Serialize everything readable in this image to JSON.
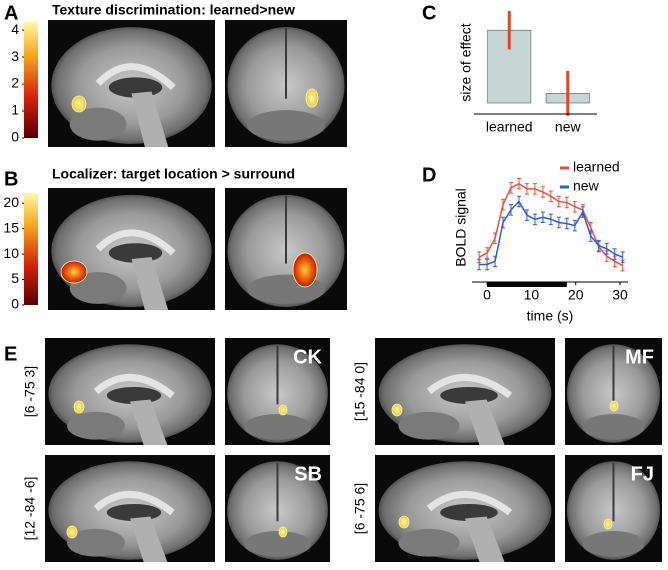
{
  "panels": {
    "A": {
      "letter": "A",
      "title": "Texture discrimination: learned>new"
    },
    "B": {
      "letter": "B",
      "title": "Localizer: target location > surround"
    },
    "C": {
      "letter": "C"
    },
    "D": {
      "letter": "D"
    },
    "E": {
      "letter": "E",
      "subjects": [
        {
          "name": "CK",
          "coords": "[6 -75 3]"
        },
        {
          "name": "SB",
          "coords": "[12 -84 -6]"
        },
        {
          "name": "MF",
          "coords": "[15 -84 0]"
        },
        {
          "name": "FJ",
          "coords": "[6 -75 6]"
        }
      ]
    }
  },
  "chart_data": [
    {
      "type": "colorbar",
      "ylim": [
        0,
        4.3
      ],
      "yticks": [
        0,
        1,
        2,
        3,
        4
      ]
    },
    {
      "type": "colorbar",
      "ylim": [
        0,
        22
      ],
      "yticks": [
        0,
        5,
        10,
        15,
        20
      ]
    },
    {
      "type": "bar",
      "ylabel": "size of effect",
      "categories": [
        "learned",
        "new"
      ],
      "values": [
        68,
        9
      ],
      "errors": [
        18,
        21
      ],
      "color": "#c7d6d4",
      "error_color": "#e8411f",
      "ylim": [
        0,
        85
      ]
    },
    {
      "type": "line",
      "ylabel": "BOLD signal",
      "xlabel": "time (s)",
      "x": [
        -1.8,
        0,
        1.8,
        3.6,
        5.4,
        7.2,
        9,
        10.8,
        12.6,
        14.4,
        16.2,
        18,
        19.8,
        21.6,
        23.4,
        25.2,
        27,
        28.8,
        30.6
      ],
      "series": [
        {
          "name": "learned",
          "color": "#e8503a",
          "values": [
            17,
            21,
            35,
            67,
            83,
            87,
            82,
            82,
            79,
            75,
            70,
            69,
            65,
            62,
            45,
            27,
            18,
            13,
            9
          ],
          "errors": [
            5,
            5,
            5,
            5,
            5,
            5,
            5,
            5,
            5,
            5,
            5,
            5,
            5,
            5,
            5,
            5,
            5,
            5,
            5
          ]
        },
        {
          "name": "new",
          "color": "#2d5bd6",
          "values": [
            10,
            10,
            13,
            50,
            62,
            70,
            57,
            53,
            55,
            53,
            50,
            49,
            47,
            60,
            37,
            28,
            25,
            20,
            17
          ],
          "errors": [
            5,
            5,
            5,
            5,
            5,
            5,
            5,
            5,
            5,
            5,
            5,
            5,
            5,
            5,
            5,
            5,
            5,
            5,
            5
          ]
        }
      ],
      "stimulus": [
        0,
        18
      ],
      "xlim": [
        -3.4,
        31.8
      ],
      "xticks": [
        0,
        10,
        20,
        30
      ],
      "ylim": [
        0,
        100
      ]
    }
  ]
}
